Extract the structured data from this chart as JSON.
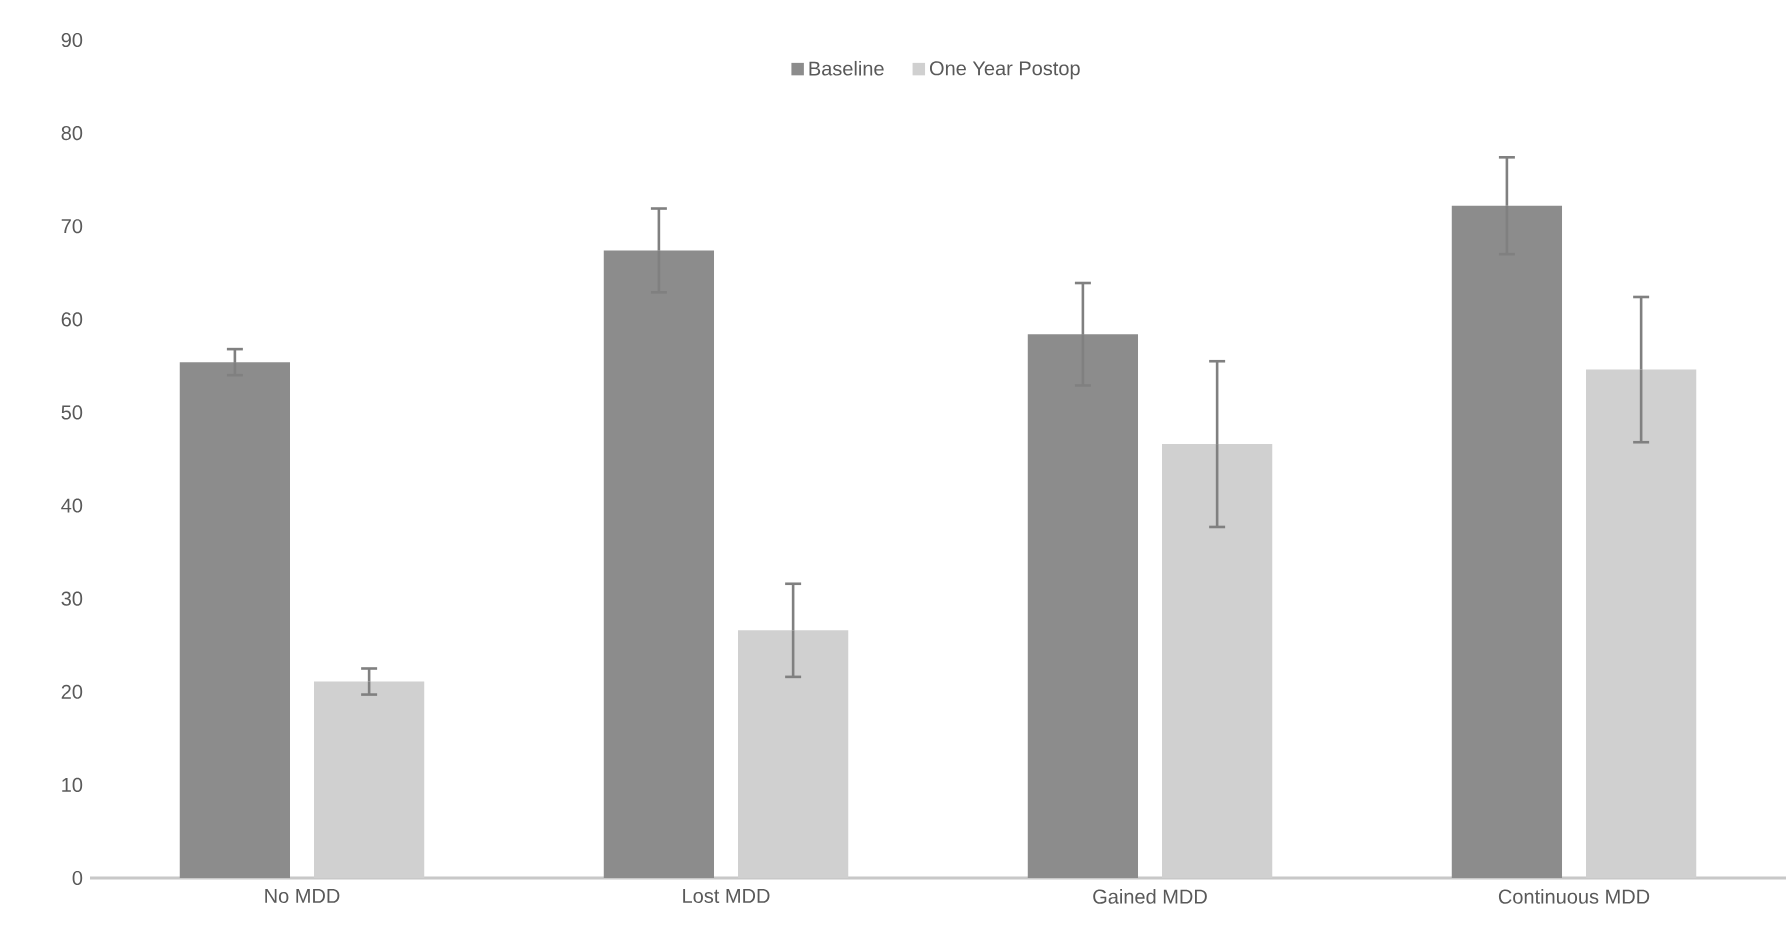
{
  "chart_data": {
    "type": "bar",
    "categories": [
      "No MDD",
      "Lost MDD",
      "Gained MDD",
      "Continuous MDD"
    ],
    "series": [
      {
        "name": "Baseline",
        "color": "#8c8c8c",
        "values": [
          55.4,
          67.4,
          58.4,
          72.2
        ],
        "errors": [
          1.4,
          4.5,
          5.5,
          5.2
        ]
      },
      {
        "name": "One Year Postop",
        "color": "#d0d0d0",
        "values": [
          21.1,
          26.6,
          46.6,
          54.6
        ],
        "errors": [
          1.4,
          5.0,
          8.9,
          7.8
        ]
      }
    ],
    "ylim": [
      0,
      90
    ],
    "yticks": [
      0,
      10,
      20,
      30,
      40,
      50,
      60,
      70,
      80,
      90
    ],
    "grid": false,
    "legend": "top"
  }
}
